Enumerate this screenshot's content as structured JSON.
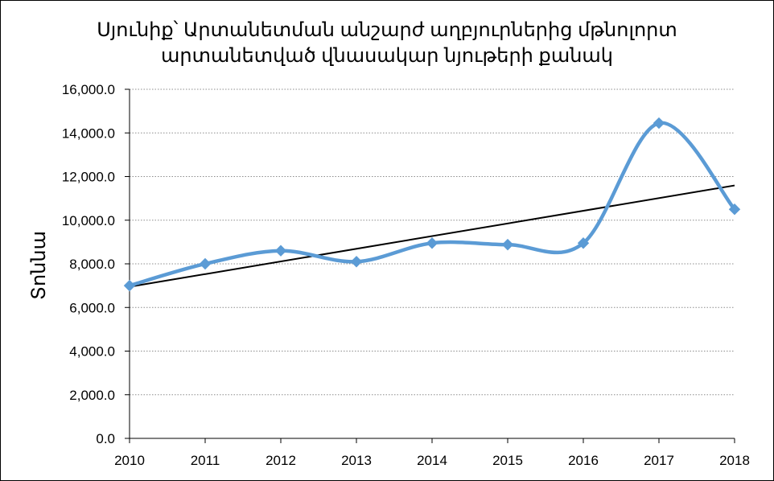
{
  "chart_data": {
    "type": "line",
    "title_lines": [
      "Սյունիք՝ Արտանետման անշարժ աղբյուրներից մթնոլորտ",
      "արտանետված վնասակար նյութերի քանակ"
    ],
    "xlabel": "",
    "ylabel": "Տոննա",
    "categories": [
      "2010",
      "2011",
      "2012",
      "2013",
      "2014",
      "2015",
      "2016",
      "2017",
      "2018"
    ],
    "series": [
      {
        "values": [
          7000,
          8000,
          8600,
          8100,
          8950,
          8880,
          8950,
          14450,
          10500
        ],
        "color": "#5b9bd5",
        "marker": "diamond",
        "smooth": true
      }
    ],
    "trendline": {
      "type": "linear",
      "color": "#000000"
    },
    "y_ticks": [
      "0.0",
      "2,000.0",
      "4,000.0",
      "6,000.0",
      "8,000.0",
      "10,000.0",
      "12,000.0",
      "14,000.0",
      "16,000.0"
    ],
    "ylim": [
      0,
      16000
    ],
    "y_step": 2000,
    "grid": "horizontal-dotted",
    "legend": "none"
  }
}
